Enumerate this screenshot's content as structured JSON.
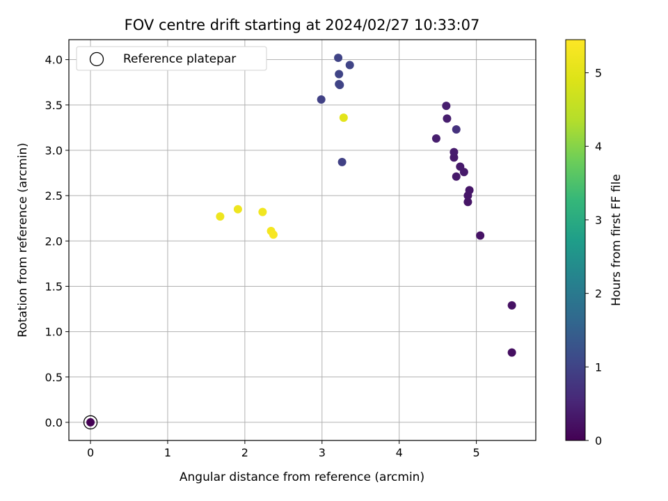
{
  "chart_data": {
    "type": "scatter",
    "title": "FOV centre drift starting at 2024/02/27 10:33:07",
    "xlabel": "Angular distance from reference (arcmin)",
    "ylabel": "Rotation from reference (arcmin)",
    "xlim": [
      -0.28,
      5.77
    ],
    "ylim": [
      -0.2,
      4.22
    ],
    "xticks": [
      0,
      1,
      2,
      3,
      4,
      5
    ],
    "xtick_labels": [
      "0",
      "1",
      "2",
      "3",
      "4",
      "5"
    ],
    "yticks": [
      0.0,
      0.5,
      1.0,
      1.5,
      2.0,
      2.5,
      3.0,
      3.5,
      4.0
    ],
    "ytick_labels": [
      "0.0",
      "0.5",
      "1.0",
      "1.5",
      "2.0",
      "2.5",
      "3.0",
      "3.5",
      "4.0"
    ],
    "grid": true,
    "legend": {
      "location": "upper-left",
      "entries": [
        "Reference platepar"
      ]
    },
    "reference_point": {
      "x": 0.0,
      "y": 0.0
    },
    "colorbar": {
      "label": "Hours from first FF file",
      "colormap": "viridis",
      "range": [
        0,
        5.45
      ],
      "ticks": [
        0,
        1,
        2,
        3,
        4,
        5
      ],
      "tick_labels": [
        "0",
        "1",
        "2",
        "3",
        "4",
        "5"
      ]
    },
    "points": [
      {
        "x": 0.0,
        "y": 0.0,
        "c": 0.0
      },
      {
        "x": 5.46,
        "y": 0.77,
        "c": 0.2
      },
      {
        "x": 5.46,
        "y": 1.29,
        "c": 0.22
      },
      {
        "x": 5.05,
        "y": 2.06,
        "c": 0.25
      },
      {
        "x": 4.89,
        "y": 2.43,
        "c": 0.28
      },
      {
        "x": 4.89,
        "y": 2.5,
        "c": 0.3
      },
      {
        "x": 4.91,
        "y": 2.56,
        "c": 0.3
      },
      {
        "x": 4.74,
        "y": 2.71,
        "c": 0.33
      },
      {
        "x": 4.84,
        "y": 2.76,
        "c": 0.33
      },
      {
        "x": 4.79,
        "y": 2.82,
        "c": 0.35
      },
      {
        "x": 4.71,
        "y": 2.92,
        "c": 0.35
      },
      {
        "x": 4.71,
        "y": 2.98,
        "c": 0.38
      },
      {
        "x": 4.48,
        "y": 3.13,
        "c": 0.4
      },
      {
        "x": 4.74,
        "y": 3.23,
        "c": 0.7
      },
      {
        "x": 4.62,
        "y": 3.35,
        "c": 0.4
      },
      {
        "x": 4.61,
        "y": 3.49,
        "c": 0.4
      },
      {
        "x": 3.26,
        "y": 2.87,
        "c": 0.95
      },
      {
        "x": 2.99,
        "y": 3.56,
        "c": 0.95
      },
      {
        "x": 3.22,
        "y": 3.73,
        "c": 1.0
      },
      {
        "x": 3.23,
        "y": 3.72,
        "c": 1.0
      },
      {
        "x": 3.22,
        "y": 3.84,
        "c": 1.0
      },
      {
        "x": 3.36,
        "y": 3.94,
        "c": 1.0
      },
      {
        "x": 3.21,
        "y": 4.02,
        "c": 1.0
      },
      {
        "x": 3.28,
        "y": 3.36,
        "c": 5.0
      },
      {
        "x": 1.68,
        "y": 2.27,
        "c": 5.2
      },
      {
        "x": 1.91,
        "y": 2.35,
        "c": 5.2
      },
      {
        "x": 2.23,
        "y": 2.32,
        "c": 5.25
      },
      {
        "x": 2.34,
        "y": 2.11,
        "c": 5.3
      },
      {
        "x": 2.37,
        "y": 2.07,
        "c": 5.35
      }
    ]
  }
}
